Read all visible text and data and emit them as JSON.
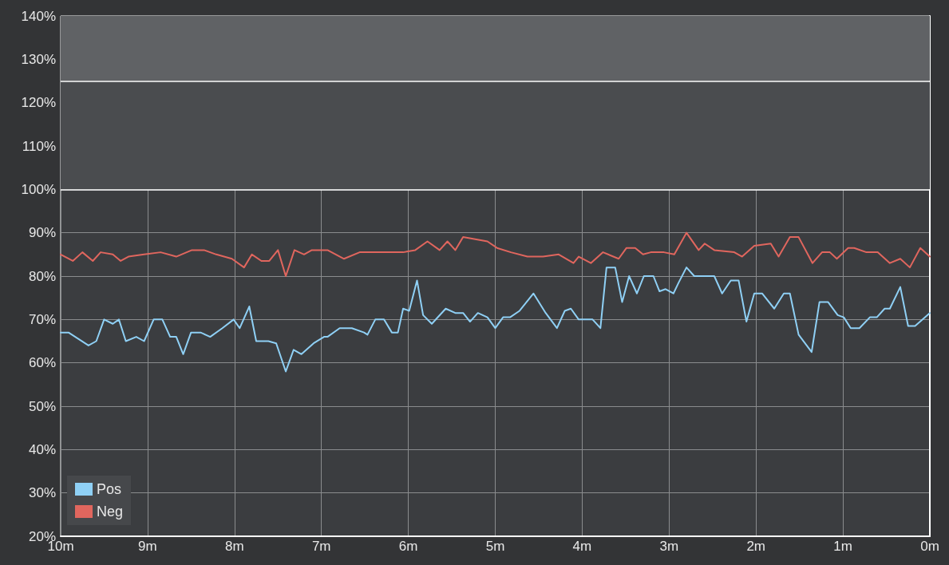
{
  "chart_data": {
    "type": "line",
    "xlim": [
      10,
      0
    ],
    "xticks": [
      {
        "value": 10,
        "label": "10m"
      },
      {
        "value": 9,
        "label": "9m"
      },
      {
        "value": 8,
        "label": "8m"
      },
      {
        "value": 7,
        "label": "7m"
      },
      {
        "value": 6,
        "label": "6m"
      },
      {
        "value": 5,
        "label": "5m"
      },
      {
        "value": 4,
        "label": "4m"
      },
      {
        "value": 3,
        "label": "3m"
      },
      {
        "value": 2,
        "label": "2m"
      },
      {
        "value": 1,
        "label": "1m"
      },
      {
        "value": 0,
        "label": "0m"
      }
    ],
    "ylim": [
      20,
      140
    ],
    "yticks": [
      {
        "value": 20,
        "label": "20%"
      },
      {
        "value": 30,
        "label": "30%"
      },
      {
        "value": 40,
        "label": "40%"
      },
      {
        "value": 50,
        "label": "50%"
      },
      {
        "value": 60,
        "label": "60%"
      },
      {
        "value": 70,
        "label": "70%"
      },
      {
        "value": 80,
        "label": "80%"
      },
      {
        "value": 90,
        "label": "90%"
      },
      {
        "value": 100,
        "label": "100%"
      },
      {
        "value": 110,
        "label": "110%"
      },
      {
        "value": 120,
        "label": "120%"
      },
      {
        "value": 130,
        "label": "130%"
      },
      {
        "value": 140,
        "label": "140%"
      }
    ],
    "grid": true,
    "legend": "bottom left",
    "marker": "none",
    "line_style": "solid",
    "bands": [
      {
        "axis": "y",
        "from": 100,
        "to": 125,
        "color": "#4a4c4f"
      },
      {
        "axis": "y",
        "from": 125,
        "to": 140,
        "color": "#606265"
      }
    ],
    "ref_lines": [
      {
        "axis": "y",
        "value": 100,
        "color": "#ffffff"
      },
      {
        "axis": "y",
        "value": 125,
        "color": "#ffffff"
      }
    ],
    "series": [
      {
        "name": "Pos",
        "color": "#8fd0f5",
        "x": [
          10,
          9.91,
          9.68,
          9.59,
          9.5,
          9.4,
          9.33,
          9.25,
          9.13,
          9.04,
          8.93,
          8.83,
          8.74,
          8.67,
          8.59,
          8.5,
          8.39,
          8.28,
          8.14,
          8.01,
          7.94,
          7.83,
          7.75,
          7.61,
          7.52,
          7.41,
          7.32,
          7.23,
          7.09,
          6.97,
          6.93,
          6.79,
          6.65,
          6.51,
          6.47,
          6.38,
          6.28,
          6.19,
          6.12,
          6.06,
          5.99,
          5.9,
          5.83,
          5.73,
          5.57,
          5.46,
          5.37,
          5.29,
          5.2,
          5.09,
          5,
          4.91,
          4.83,
          4.72,
          4.56,
          4.42,
          4.29,
          4.2,
          4.13,
          4.04,
          3.88,
          3.79,
          3.72,
          3.62,
          3.54,
          3.46,
          3.37,
          3.29,
          3.18,
          3.11,
          3.04,
          2.95,
          2.89,
          2.8,
          2.71,
          2.48,
          2.39,
          2.29,
          2.2,
          2.11,
          2.02,
          1.93,
          1.79,
          1.68,
          1.61,
          1.51,
          1.36,
          1.27,
          1.17,
          1.06,
          0.99,
          0.91,
          0.81,
          0.69,
          0.61,
          0.52,
          0.46,
          0.34,
          0.25,
          0.17,
          0
        ],
        "values": [
          67,
          67,
          64,
          65,
          70,
          69,
          70,
          65,
          66,
          65,
          70,
          70,
          66,
          66,
          62,
          67,
          67,
          66,
          68,
          70,
          68,
          73,
          65,
          65,
          64.5,
          58,
          63,
          62,
          64.5,
          66,
          66,
          68,
          68,
          67,
          66.5,
          70,
          70,
          67,
          67,
          72.5,
          72,
          79,
          71,
          69,
          72.5,
          71.5,
          71.5,
          69.5,
          71.5,
          70.5,
          68,
          70.5,
          70.5,
          72,
          76,
          71.5,
          68,
          72,
          72.5,
          70,
          70,
          68,
          82,
          82,
          74,
          80,
          76,
          80,
          80,
          76.5,
          77,
          76,
          78.5,
          82,
          80,
          80,
          76,
          79,
          79,
          69.5,
          76,
          76,
          72.5,
          76,
          76,
          66.5,
          62.5,
          74,
          74,
          71,
          70.5,
          68,
          68,
          70.5,
          70.5,
          72.5,
          72.5,
          77.5,
          68.5,
          68.5,
          71.5
        ]
      },
      {
        "name": "Neg",
        "color": "#e0665e",
        "x": [
          10,
          9.86,
          9.75,
          9.63,
          9.54,
          9.4,
          9.31,
          9.22,
          9.04,
          8.85,
          8.67,
          8.49,
          8.35,
          8.21,
          8.03,
          7.89,
          7.8,
          7.69,
          7.6,
          7.5,
          7.41,
          7.31,
          7.2,
          7.11,
          6.93,
          6.74,
          6.56,
          6.38,
          6.19,
          6.06,
          5.92,
          5.78,
          5.64,
          5.55,
          5.46,
          5.37,
          5.23,
          5.09,
          4.98,
          4.82,
          4.63,
          4.45,
          4.27,
          4.1,
          4.04,
          3.9,
          3.76,
          3.58,
          3.49,
          3.39,
          3.3,
          3.21,
          3.06,
          2.94,
          2.8,
          2.66,
          2.59,
          2.48,
          2.25,
          2.16,
          2.02,
          1.83,
          1.74,
          1.61,
          1.51,
          1.35,
          1.24,
          1.15,
          1.07,
          0.94,
          0.87,
          0.73,
          0.6,
          0.46,
          0.34,
          0.23,
          0.11,
          0
        ],
        "values": [
          85,
          83.5,
          85.5,
          83.5,
          85.5,
          85,
          83.5,
          84.5,
          85,
          85.5,
          84.5,
          86,
          86,
          85,
          84,
          82,
          85,
          83.5,
          83.5,
          86,
          80,
          86,
          85,
          86,
          86,
          84,
          85.5,
          85.5,
          85.5,
          85.5,
          86,
          88,
          86,
          88,
          86,
          89,
          88.5,
          88,
          86.5,
          85.5,
          84.5,
          84.5,
          85,
          83,
          84.5,
          83,
          85.5,
          84,
          86.5,
          86.5,
          85,
          85.5,
          85.5,
          85,
          90,
          86,
          87.5,
          86,
          85.5,
          84.5,
          87,
          87.5,
          84.5,
          89,
          89,
          83,
          85.5,
          85.5,
          84,
          86.5,
          86.5,
          85.5,
          85.5,
          83,
          84,
          82,
          86.5,
          84.5
        ]
      }
    ]
  }
}
